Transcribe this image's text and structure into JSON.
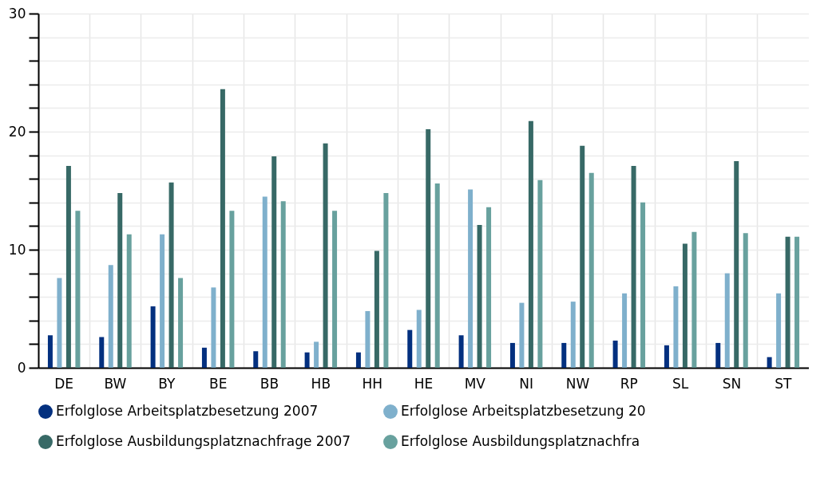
{
  "chart_data": {
    "type": "bar",
    "categories": [
      "DE",
      "BW",
      "BY",
      "BE",
      "BB",
      "HB",
      "HH",
      "HE",
      "MV",
      "NI",
      "NW",
      "RP",
      "SL",
      "SN",
      "ST"
    ],
    "series": [
      {
        "name": "Erfolglose Arbeitsplatzbesetzung 2007",
        "color": "#03307f",
        "values": [
          2.75,
          2.6,
          5.2,
          1.7,
          1.4,
          1.3,
          1.3,
          3.2,
          2.75,
          2.1,
          2.1,
          2.3,
          1.9,
          2.1,
          0.9
        ]
      },
      {
        "name": "Erfolglose Arbeitsplatzbesetzung 20",
        "color": "#7fb0cc",
        "values": [
          7.6,
          8.7,
          11.3,
          6.8,
          14.5,
          2.2,
          4.8,
          4.9,
          15.1,
          5.5,
          5.6,
          6.3,
          6.9,
          8.0,
          6.3
        ]
      },
      {
        "name": "Erfolglose Ausbildungsplatznachfrage 2007",
        "color": "#376966",
        "values": [
          17.1,
          14.8,
          15.7,
          23.6,
          17.9,
          19.0,
          9.9,
          20.2,
          12.1,
          20.9,
          18.8,
          17.1,
          10.5,
          17.5,
          11.1
        ]
      },
      {
        "name": "Erfolglose Ausbildungsplatznachfra",
        "color": "#68a19e",
        "values": [
          13.3,
          11.3,
          7.6,
          13.3,
          14.1,
          13.3,
          14.8,
          15.6,
          13.6,
          15.9,
          16.5,
          14.0,
          11.5,
          11.4,
          11.1
        ]
      }
    ],
    "ylim": [
      0,
      30
    ],
    "yticks": [
      0,
      {
        "value": 2,
        "label": null
      },
      {
        "value": 4,
        "label": null
      },
      {
        "value": 6,
        "label": null
      },
      {
        "value": 8,
        "label": null
      },
      10,
      {
        "value": 12,
        "label": null
      },
      {
        "value": 14,
        "label": null
      },
      {
        "value": 16,
        "label": null
      },
      {
        "value": 18,
        "label": null
      },
      20,
      {
        "value": 22,
        "label": null
      },
      {
        "value": 24,
        "label": null
      },
      {
        "value": 26,
        "label": null
      },
      {
        "value": 28,
        "label": null
      },
      30
    ],
    "grid": true,
    "legend": "bottom"
  }
}
